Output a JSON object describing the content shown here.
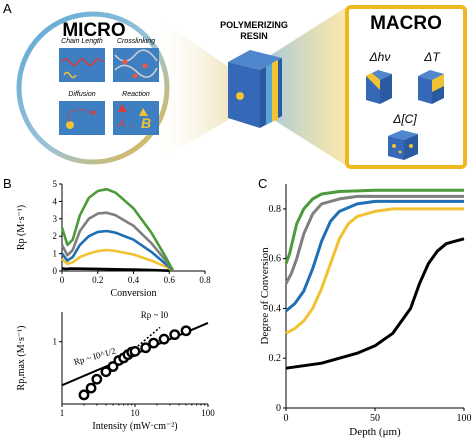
{
  "panels": {
    "a": "A",
    "b": "B",
    "c": "C"
  },
  "micro": {
    "title": "MICRO",
    "tiles": [
      "Chain Length",
      "Crosslinking",
      "Diffusion",
      "Reaction"
    ],
    "reaction_text": {
      "a": "A",
      "b": "B"
    }
  },
  "center": {
    "line1": "POLYMERIZING",
    "line2": "RESIN"
  },
  "macro": {
    "title": "MACRO",
    "labels": [
      "Δhν",
      "ΔT",
      "Δ[C]"
    ]
  },
  "colors": {
    "micro_ring": "#e8b63a",
    "macro_ring": "#f0b820",
    "accent_blue": "#5aa7d6",
    "cube_blue": "#3568b7",
    "series_black": "#000000",
    "series_yellow": "#f1c232",
    "series_blue": "#1f6fb5",
    "series_gray": "#7f7f7f",
    "series_green": "#4c9a3a"
  },
  "chart_data": [
    {
      "type": "line",
      "xlabel": "Conversion",
      "ylabel": "Rp (M·s⁻¹)",
      "xlim": [
        0,
        0.8
      ],
      "ylim": [
        0,
        5
      ],
      "xticks": [
        "0",
        "0.2",
        "0.4",
        "0.6",
        "0.8"
      ],
      "yticks": [
        "0",
        "1",
        "2",
        "3",
        "4",
        "5"
      ],
      "series": [
        {
          "color": "#000000",
          "x": [
            0,
            0.02,
            0.05,
            0.1,
            0.2,
            0.3,
            0.4,
            0.5,
            0.6
          ],
          "y": [
            0.15,
            0.12,
            0.14,
            0.13,
            0.12,
            0.1,
            0.08,
            0.05,
            0.02
          ]
        },
        {
          "color": "#f1c232",
          "x": [
            0,
            0.03,
            0.06,
            0.1,
            0.15,
            0.2,
            0.25,
            0.3,
            0.4,
            0.5,
            0.58,
            0.62
          ],
          "y": [
            0.7,
            0.4,
            0.5,
            0.8,
            1.0,
            1.15,
            1.2,
            1.15,
            0.95,
            0.6,
            0.25,
            0.05
          ]
        },
        {
          "color": "#1f6fb5",
          "x": [
            0,
            0.03,
            0.06,
            0.1,
            0.15,
            0.2,
            0.25,
            0.3,
            0.4,
            0.5,
            0.58,
            0.62
          ],
          "y": [
            1.0,
            0.6,
            0.8,
            1.5,
            2.0,
            2.25,
            2.3,
            2.2,
            1.8,
            1.1,
            0.4,
            0.05
          ]
        },
        {
          "color": "#7f7f7f",
          "x": [
            0,
            0.03,
            0.06,
            0.1,
            0.15,
            0.2,
            0.25,
            0.3,
            0.4,
            0.5,
            0.58,
            0.62
          ],
          "y": [
            1.5,
            0.9,
            1.2,
            2.3,
            3.0,
            3.3,
            3.35,
            3.2,
            2.6,
            1.6,
            0.6,
            0.05
          ]
        },
        {
          "color": "#4c9a3a",
          "x": [
            0,
            0.03,
            0.06,
            0.1,
            0.15,
            0.2,
            0.25,
            0.3,
            0.4,
            0.5,
            0.58,
            0.62
          ],
          "y": [
            2.5,
            1.5,
            1.8,
            3.2,
            4.2,
            4.6,
            4.7,
            4.5,
            3.6,
            2.2,
            0.8,
            0.05
          ]
        }
      ]
    },
    {
      "type": "scatter",
      "xlabel": "Intensity (mW·cm⁻²)",
      "ylabel": "Rp,max (M·s⁻¹)",
      "xscale": "log",
      "yscale": "log",
      "xlim": [
        1,
        100
      ],
      "ylim": [
        0.1,
        3
      ],
      "xticks": [
        "1",
        "10",
        "100"
      ],
      "yticks": [
        "1"
      ],
      "annotations": [
        "Rp ~ I0",
        "Rp ~ I0^1/2"
      ],
      "points": {
        "x": [
          2,
          2.5,
          3,
          4,
          5,
          6,
          7,
          8,
          9,
          10,
          14,
          18,
          25,
          35,
          50
        ],
        "y": [
          0.14,
          0.18,
          0.25,
          0.33,
          0.4,
          0.5,
          0.55,
          0.62,
          0.68,
          0.7,
          0.8,
          0.95,
          1.1,
          1.3,
          1.5
        ]
      },
      "fit_half": {
        "x": [
          1,
          100
        ],
        "y": [
          0.2,
          2.0
        ]
      },
      "fit_linear": {
        "x": [
          9,
          22
        ],
        "y": [
          0.7,
          1.7
        ]
      }
    },
    {
      "type": "line",
      "xlabel": "Depth (μm)",
      "ylabel": "Degree of Conversion",
      "xlim": [
        0,
        100
      ],
      "ylim": [
        0,
        0.9
      ],
      "xticks": [
        "0",
        "50",
        "100"
      ],
      "yticks": [
        "0",
        "0.2",
        "0.4",
        "0.6",
        "0.8"
      ],
      "series": [
        {
          "color": "#000000",
          "x": [
            0,
            10,
            20,
            30,
            40,
            50,
            60,
            70,
            75,
            80,
            85,
            90,
            95,
            100
          ],
          "y": [
            0.16,
            0.17,
            0.18,
            0.2,
            0.22,
            0.25,
            0.3,
            0.4,
            0.5,
            0.58,
            0.63,
            0.66,
            0.67,
            0.68
          ]
        },
        {
          "color": "#f1c232",
          "x": [
            0,
            5,
            10,
            15,
            20,
            25,
            30,
            35,
            40,
            50,
            60,
            80,
            100
          ],
          "y": [
            0.3,
            0.32,
            0.35,
            0.4,
            0.48,
            0.58,
            0.68,
            0.74,
            0.77,
            0.79,
            0.8,
            0.8,
            0.8
          ]
        },
        {
          "color": "#1f6fb5",
          "x": [
            0,
            5,
            10,
            15,
            20,
            25,
            30,
            40,
            50,
            70,
            100
          ],
          "y": [
            0.39,
            0.42,
            0.47,
            0.56,
            0.67,
            0.75,
            0.79,
            0.82,
            0.83,
            0.83,
            0.83
          ]
        },
        {
          "color": "#7f7f7f",
          "x": [
            0,
            3,
            6,
            10,
            15,
            20,
            30,
            40,
            60,
            100
          ],
          "y": [
            0.5,
            0.54,
            0.6,
            0.7,
            0.78,
            0.82,
            0.84,
            0.85,
            0.85,
            0.85
          ]
        },
        {
          "color": "#4c9a3a",
          "x": [
            0,
            2,
            4,
            6,
            10,
            15,
            20,
            30,
            50,
            100
          ],
          "y": [
            0.58,
            0.62,
            0.68,
            0.74,
            0.8,
            0.84,
            0.86,
            0.87,
            0.875,
            0.875
          ]
        }
      ]
    }
  ]
}
